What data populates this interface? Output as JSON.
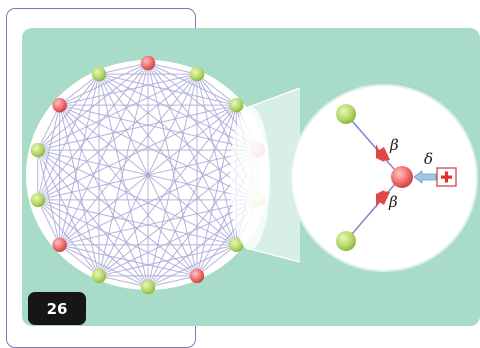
{
  "figure": {
    "badge_number": "26",
    "colors": {
      "panel": "#a9dcc8",
      "frame_line": "#7a7ab6",
      "edge": "#a7a7d8",
      "node_green": "#b5d86a",
      "node_red": "#ee6b6b",
      "arrow_red": "#e04848",
      "arrow_blue": "#9fc6ea"
    },
    "network": {
      "node_count": 14,
      "connectivity": "complete-graph",
      "node_states": [
        "red",
        "green",
        "green",
        "red",
        "green",
        "green",
        "red",
        "green",
        "green",
        "red",
        "green",
        "green",
        "red",
        "green"
      ]
    },
    "zoom": {
      "labels": {
        "upper_rate": "β",
        "lower_rate": "β",
        "external_rate": "δ"
      },
      "nodes": {
        "top": "green",
        "center": "red",
        "bottom": "green"
      },
      "source_icon": "plus-box-icon"
    }
  }
}
